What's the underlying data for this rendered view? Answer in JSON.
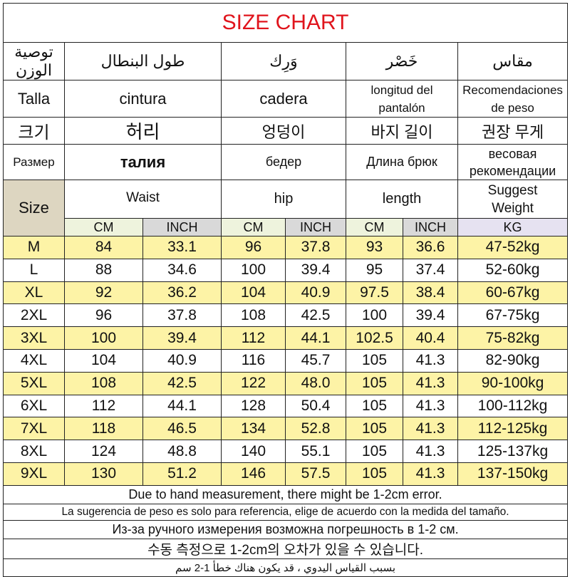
{
  "title": "SIZE CHART",
  "headers": {
    "arabic": [
      "مقاس",
      "خَصْر",
      "وَرِك",
      "طول البنطال",
      "توصية الوزن"
    ],
    "spanish": [
      "Talla",
      "cintura",
      "cadera",
      "longitud del pantalón",
      "Recomendaciones de peso"
    ],
    "korean": [
      "크기",
      "허리",
      "엉덩이",
      "바지 길이",
      "권장 무게"
    ],
    "russian": [
      "Размер",
      "талия",
      "бедер",
      "Длина брюк",
      "весовая рекомендации"
    ],
    "english": [
      "Size",
      "Waist",
      "hip",
      "length",
      "Suggest Weight"
    ],
    "units": [
      "CM",
      "INCH",
      "CM",
      "INCH",
      "CM",
      "INCH",
      "KG"
    ]
  },
  "rows": [
    [
      "M",
      "84",
      "33.1",
      "96",
      "37.8",
      "93",
      "36.6",
      "47-52kg"
    ],
    [
      "L",
      "88",
      "34.6",
      "100",
      "39.4",
      "95",
      "37.4",
      "52-60kg"
    ],
    [
      "XL",
      "92",
      "36.2",
      "104",
      "40.9",
      "97.5",
      "38.4",
      "60-67kg"
    ],
    [
      "2XL",
      "96",
      "37.8",
      "108",
      "42.5",
      "100",
      "39.4",
      "67-75kg"
    ],
    [
      "3XL",
      "100",
      "39.4",
      "112",
      "44.1",
      "102.5",
      "40.4",
      "75-82kg"
    ],
    [
      "4XL",
      "104",
      "40.9",
      "116",
      "45.7",
      "105",
      "41.3",
      "82-90kg"
    ],
    [
      "5XL",
      "108",
      "42.5",
      "122",
      "48.0",
      "105",
      "41.3",
      "90-100kg"
    ],
    [
      "6XL",
      "112",
      "44.1",
      "128",
      "50.4",
      "105",
      "41.3",
      "100-112kg"
    ],
    [
      "7XL",
      "118",
      "46.5",
      "134",
      "52.8",
      "105",
      "41.3",
      "112-125kg"
    ],
    [
      "8XL",
      "124",
      "48.8",
      "140",
      "55.1",
      "105",
      "41.3",
      "125-137kg"
    ],
    [
      "9XL",
      "130",
      "51.2",
      "146",
      "57.5",
      "105",
      "41.3",
      "137-150kg"
    ]
  ],
  "notes": [
    "Due to hand measurement, there might be 1-2cm error.",
    "La sugerencia de peso es solo para referencia, elige de acuerdo con la medida del tamaño.",
    "Из-за ручного измерения возможна погрешность в 1-2 см.",
    "수동 측정으로 1-2cm의 오차가 있을 수 있습니다.",
    "بسبب القياس اليدوي ، قد يكون هناك خطأ 1-2 سم"
  ],
  "colors": {
    "title": "#e0141c",
    "highlight_row": "#fdf3a6",
    "size_cell": "#ddd6c1",
    "cm": "#eef3dd",
    "inch": "#d9d9d9",
    "kg": "#e6e2f1"
  }
}
